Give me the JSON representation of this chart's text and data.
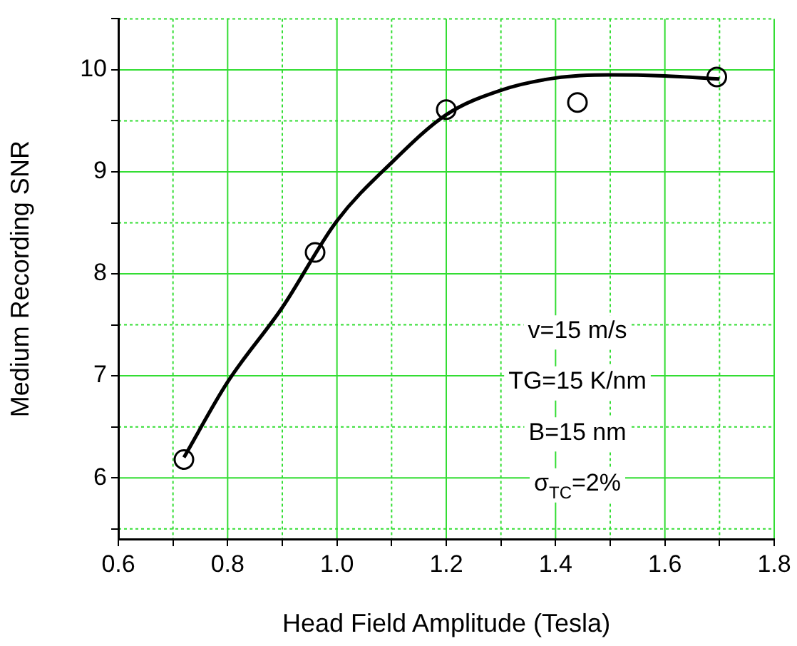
{
  "chart_data": {
    "type": "scatter",
    "xlabel": "Head Field Amplitude (Tesla)",
    "ylabel": "Medium Recording SNR",
    "x": [
      0.72,
      0.96,
      1.2,
      1.44,
      1.695
    ],
    "series": [
      {
        "type": "scatter",
        "color": "#000000",
        "marker": "circle",
        "values": [
          6.18,
          8.21,
          9.61,
          9.68,
          9.93
        ]
      },
      {
        "type": "line",
        "color": "#000000",
        "marker": "none",
        "line_style": "solid",
        "x": [
          0.72,
          0.8,
          0.9,
          1.0,
          1.1,
          1.2,
          1.3,
          1.4,
          1.5,
          1.6,
          1.7
        ],
        "values": [
          6.2,
          6.94,
          7.67,
          8.52,
          9.09,
          9.56,
          9.8,
          9.92,
          9.95,
          9.94,
          9.91
        ]
      }
    ],
    "xlim": [
      0.6,
      1.8
    ],
    "xticks": [
      0.6,
      {
        "value": 0.7,
        "label": null
      },
      0.8,
      {
        "value": 0.9,
        "label": null
      },
      {
        "value": 1,
        "label": "1.0"
      },
      {
        "value": 1.1,
        "label": null
      },
      1.2,
      {
        "value": 1.3,
        "label": null
      },
      1.4,
      {
        "value": 1.5,
        "label": null
      },
      1.6,
      {
        "value": 1.7,
        "label": null
      },
      1.8
    ],
    "ylim": [
      5.4,
      10.5
    ],
    "yticks": [
      {
        "value": 5.5,
        "label": null
      },
      6,
      {
        "value": 6.5,
        "label": null
      },
      7,
      {
        "value": 7.5,
        "label": null
      },
      8,
      {
        "value": 8.5,
        "label": null
      },
      9,
      {
        "value": 9.5,
        "label": null
      },
      10,
      {
        "value": 10.5,
        "label": null
      }
    ],
    "grid": true,
    "legend": false,
    "annotations": [
      "v=15 m/s",
      "TG=15 K/nm",
      "B=15 nm",
      "σ$_{TC}$=2%"
    ]
  }
}
